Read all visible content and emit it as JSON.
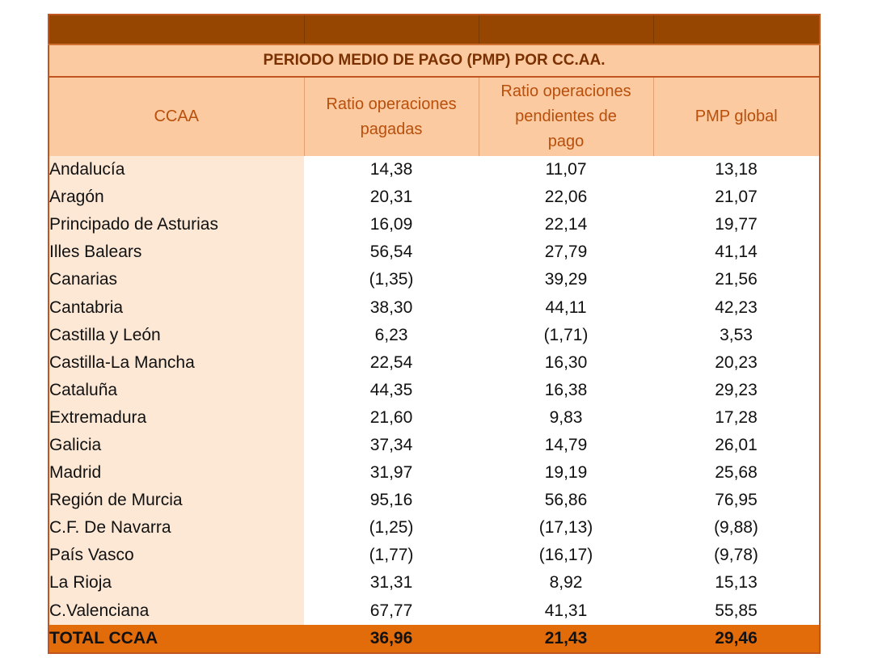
{
  "table": {
    "title": "PERIODO MEDIO DE PAGO (PMP) POR CC.AA.",
    "headers": [
      "CCAA",
      "Ratio operaciones pagadas",
      "Ratio operaciones pendientes de pago",
      "PMP global"
    ],
    "rows": [
      {
        "name": "Andalucía",
        "pagadas": "14,38",
        "pendientes": "11,07",
        "pmp": "13,18"
      },
      {
        "name": "Aragón",
        "pagadas": "20,31",
        "pendientes": "22,06",
        "pmp": "21,07"
      },
      {
        "name": "Principado de Asturias",
        "pagadas": "16,09",
        "pendientes": "22,14",
        "pmp": "19,77"
      },
      {
        "name": "Illes Balears",
        "pagadas": "56,54",
        "pendientes": "27,79",
        "pmp": "41,14"
      },
      {
        "name": "Canarias",
        "pagadas": "(1,35)",
        "pendientes": "39,29",
        "pmp": "21,56"
      },
      {
        "name": "Cantabria",
        "pagadas": "38,30",
        "pendientes": "44,11",
        "pmp": "42,23"
      },
      {
        "name": "Castilla y León",
        "pagadas": "6,23",
        "pendientes": "(1,71)",
        "pmp": "3,53"
      },
      {
        "name": "Castilla-La Mancha",
        "pagadas": "22,54",
        "pendientes": "16,30",
        "pmp": "20,23"
      },
      {
        "name": "Cataluña",
        "pagadas": "44,35",
        "pendientes": "16,38",
        "pmp": "29,23"
      },
      {
        "name": "Extremadura",
        "pagadas": "21,60",
        "pendientes": "9,83",
        "pmp": "17,28"
      },
      {
        "name": "Galicia",
        "pagadas": "37,34",
        "pendientes": "14,79",
        "pmp": "26,01"
      },
      {
        "name": "Madrid",
        "pagadas": "31,97",
        "pendientes": "19,19",
        "pmp": "25,68"
      },
      {
        "name": "Región de Murcia",
        "pagadas": "95,16",
        "pendientes": "56,86",
        "pmp": "76,95"
      },
      {
        "name": "C.F. De Navarra",
        "pagadas": "(1,25)",
        "pendientes": "(17,13)",
        "pmp": "(9,88)"
      },
      {
        "name": "País Vasco",
        "pagadas": "(1,77)",
        "pendientes": "(16,17)",
        "pmp": "(9,78)"
      },
      {
        "name": "La Rioja",
        "pagadas": "31,31",
        "pendientes": "8,92",
        "pmp": "15,13"
      },
      {
        "name": "C.Valenciana",
        "pagadas": "67,77",
        "pendientes": "41,31",
        "pmp": "55,85"
      }
    ],
    "total": {
      "name": "TOTAL CCAA",
      "pagadas": "36,96",
      "pendientes": "21,43",
      "pmp": "29,46"
    }
  },
  "colors": {
    "top_band": "#964600",
    "header_fill": "#fbcaa0",
    "header_text": "#b84f0c",
    "name_fill": "#fde8d6",
    "total_fill": "#e36c0a",
    "border": "#c0561f"
  }
}
